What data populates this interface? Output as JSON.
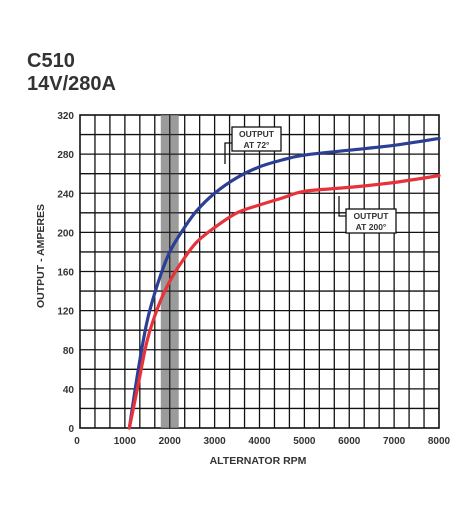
{
  "header": {
    "model": "C510",
    "rating": "14V/280A"
  },
  "chart_data": {
    "type": "line",
    "xlabel": "ALTERNATOR RPM",
    "ylabel": "OUTPUT - AMPERES",
    "xlim": [
      0,
      8000
    ],
    "ylim": [
      0,
      320
    ],
    "xticks": [
      0,
      1000,
      2000,
      3000,
      4000,
      5000,
      6000,
      7000,
      8000
    ],
    "yticks": [
      0,
      40,
      80,
      120,
      160,
      200,
      240,
      280,
      320
    ],
    "grid": true,
    "highlight_band": {
      "x": [
        1800,
        2200
      ],
      "color": "#8a8a8a"
    },
    "series": [
      {
        "name": "OUTPUT AT 72°",
        "label_lines": [
          "OUTPUT",
          "AT 72°"
        ],
        "color": "#2b3f95",
        "x": [
          1100,
          1300,
          1500,
          1750,
          2000,
          2300,
          2600,
          3000,
          3500,
          4000,
          4500,
          5000,
          6000,
          7000,
          8000
        ],
        "y": [
          0,
          60,
          110,
          150,
          180,
          203,
          222,
          240,
          256,
          267,
          274,
          279,
          284,
          289,
          296
        ]
      },
      {
        "name": "OUTPUT AT 200°",
        "label_lines": [
          "OUTPUT",
          "AT 200°"
        ],
        "color": "#e8323a",
        "x": [
          1100,
          1300,
          1500,
          1750,
          2000,
          2300,
          2600,
          3000,
          3500,
          4000,
          4500,
          5000,
          6000,
          7000,
          8000
        ],
        "y": [
          0,
          45,
          90,
          125,
          150,
          172,
          190,
          205,
          220,
          228,
          235,
          242,
          246,
          251,
          258
        ]
      }
    ]
  }
}
